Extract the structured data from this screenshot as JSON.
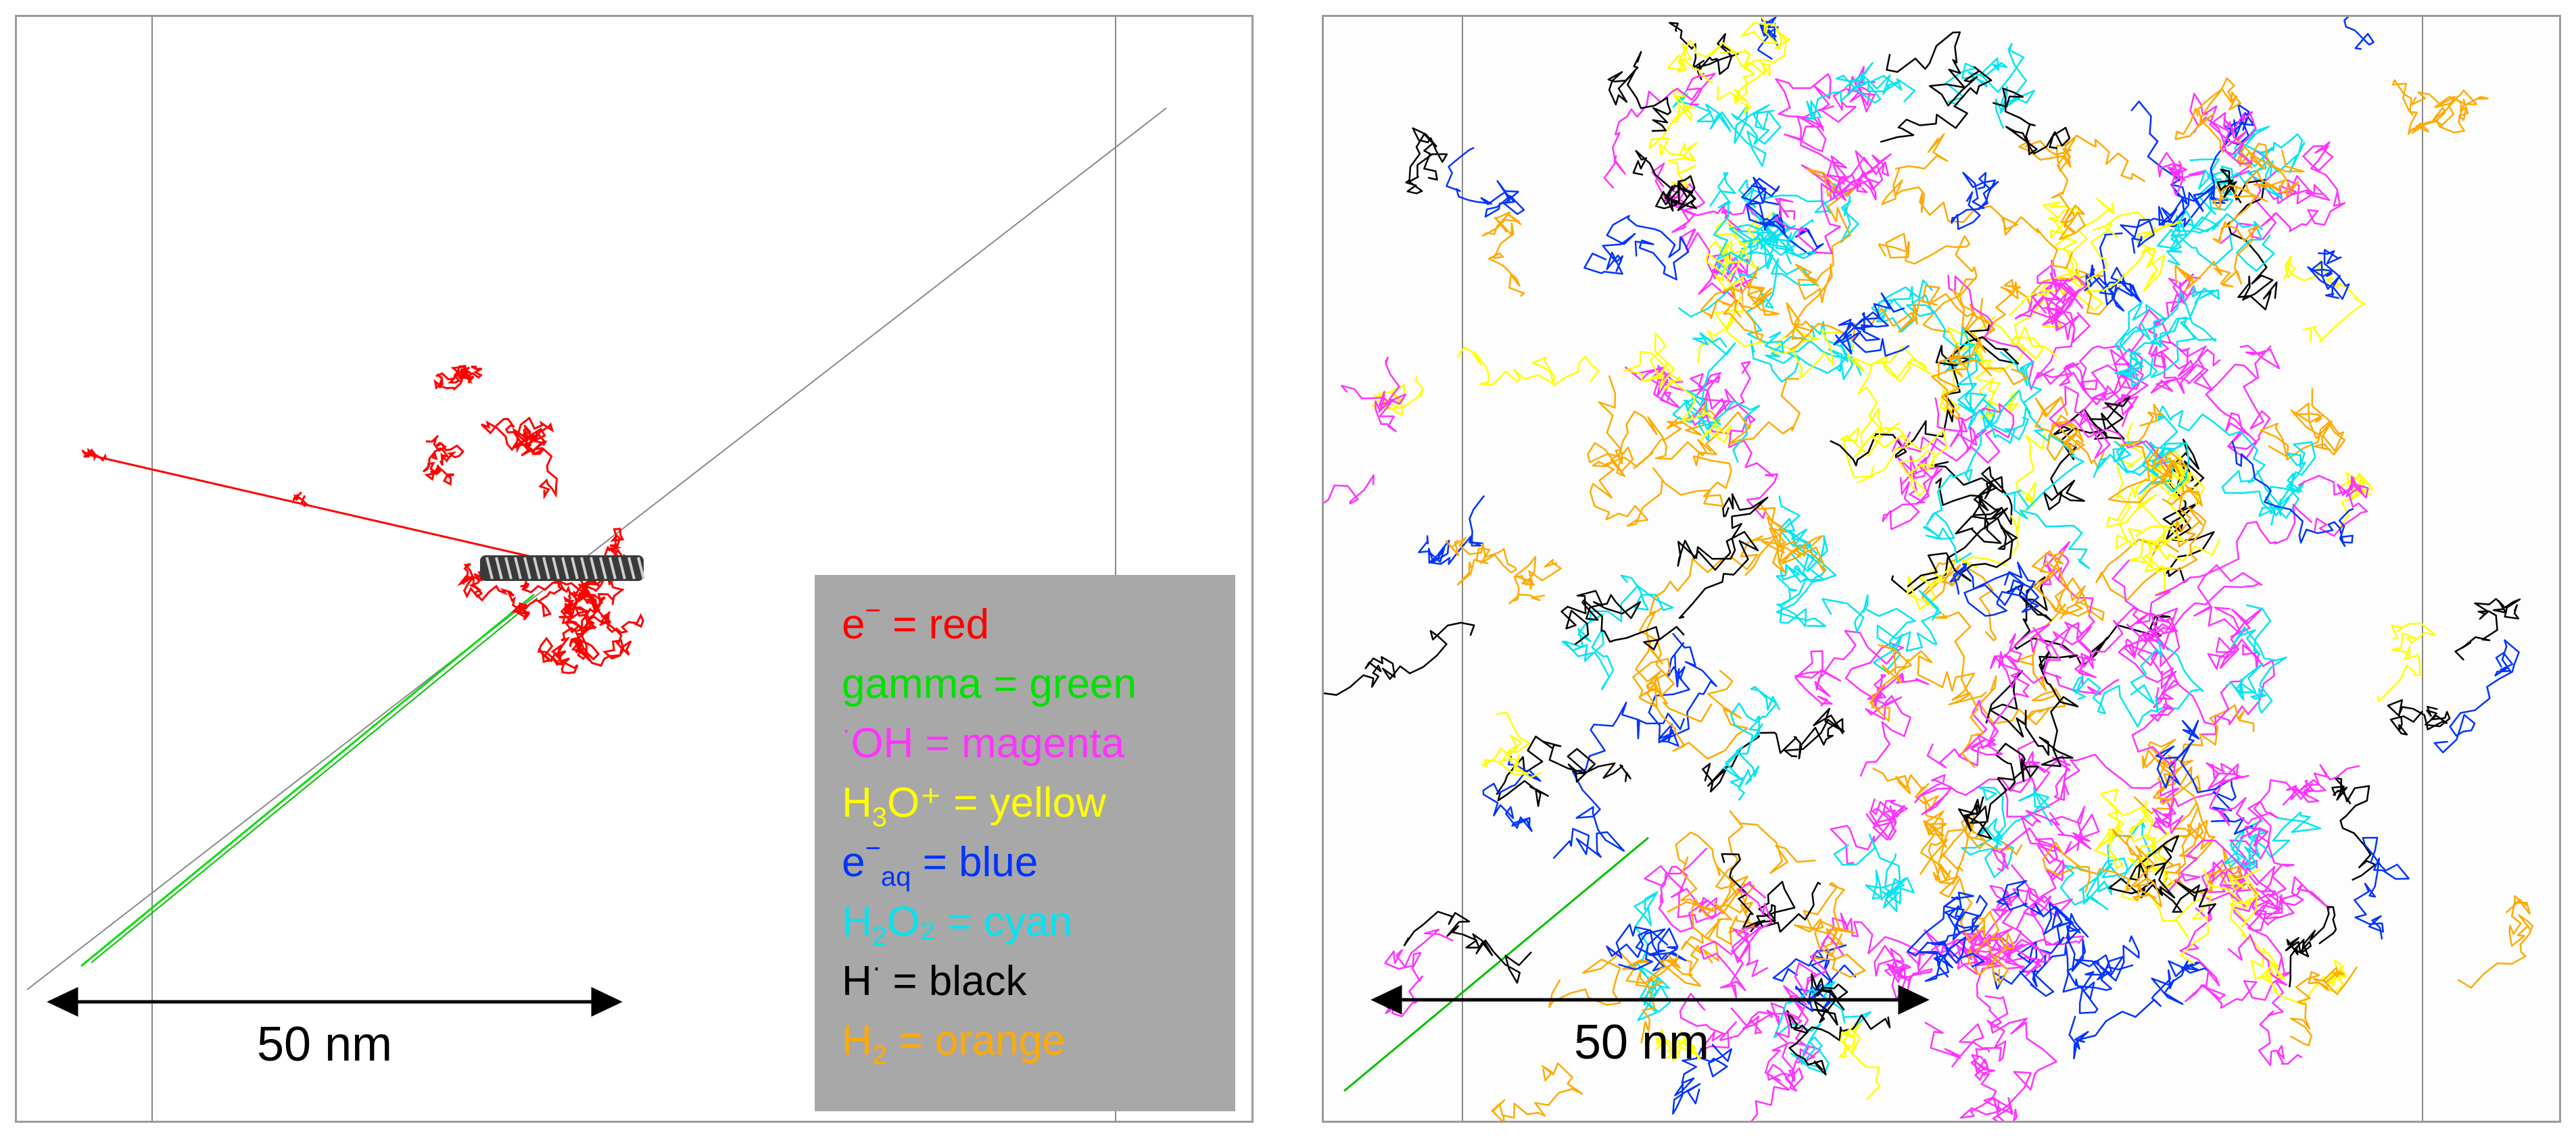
{
  "left_panel": {
    "scale_label": "50 nm"
  },
  "right_panel": {
    "scale_label": "50 nm"
  },
  "legend": [
    {
      "id": "electron",
      "species": "e",
      "sup": "−",
      "sub": "",
      "after": "",
      "text": " = red",
      "color": "#ff0000"
    },
    {
      "id": "gamma",
      "species": "gamma",
      "sup": "",
      "sub": "",
      "after": "",
      "text": " = green",
      "color": "#00e000"
    },
    {
      "id": "hydroxyl",
      "species": "",
      "sup": "·",
      "sub": "",
      "after": "OH",
      "text": " = magenta",
      "color": "#ff33ff"
    },
    {
      "id": "hydronium",
      "species": "H",
      "sup": "",
      "sub": "3",
      "after": "O⁺",
      "text": " = yellow",
      "color": "#ffff00"
    },
    {
      "id": "aqueous-electron",
      "species": "e",
      "sup": "−",
      "sub": "aq",
      "after": "",
      "text": " = blue",
      "color": "#0033ff"
    },
    {
      "id": "hydrogen-peroxide",
      "species": "H",
      "sup": "",
      "sub": "2",
      "after": "O₂",
      "text": " = cyan",
      "color": "#00e5f0"
    },
    {
      "id": "hydrogen-radical",
      "species": "H",
      "sup": "·",
      "sub": "",
      "after": "",
      "text": " = black",
      "color": "#000000"
    },
    {
      "id": "hydrogen",
      "species": "H",
      "sup": "",
      "sub": "2",
      "after": "",
      "text": " = orange",
      "color": "#ffaa00"
    }
  ],
  "colors": {
    "red": "#ff0000",
    "green": "#00e000",
    "magenta": "#ff33ff",
    "yellow": "#ffff00",
    "blue": "#0033ff",
    "cyan": "#00e5f0",
    "black": "#000000",
    "orange": "#ffaa00",
    "legend_background": "#a8a8a8",
    "frame": "#9a9a9a"
  }
}
